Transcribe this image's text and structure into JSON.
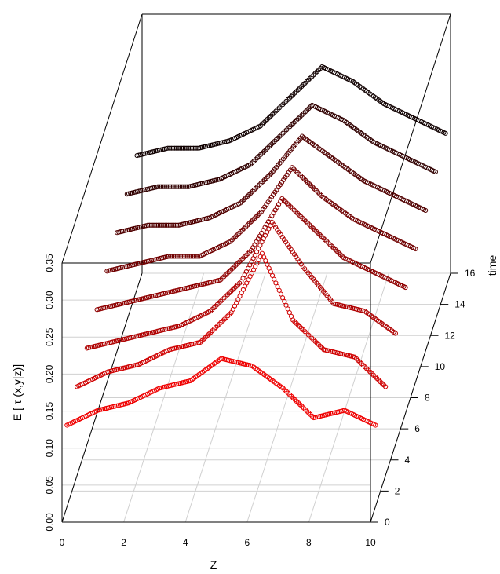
{
  "chart_data": {
    "type": "scatter",
    "projection": "3d-scatterplot-box",
    "xlabel": "Z",
    "ylabel": "E [ τ (x,y|z)]",
    "zlabel": "time",
    "x_ticks": [
      "0",
      "2",
      "4",
      "6",
      "8",
      "10"
    ],
    "y_ticks": [
      "0.00",
      "0.05",
      "0.10",
      "0.15",
      "0.20",
      "0.25",
      "0.30",
      "0.35"
    ],
    "z_ticks": [
      "0",
      "2",
      "4",
      "6",
      "8",
      "10",
      "12",
      "14",
      "16"
    ],
    "xlim": [
      0,
      10
    ],
    "ylim": [
      0,
      0.35
    ],
    "zlim": [
      0,
      16
    ],
    "grid": true,
    "marker": "open-circle",
    "color_gradient": {
      "low_time": "#ff0000",
      "high_time": "#000000"
    },
    "series": [
      {
        "time": 1,
        "x": [
          0,
          1,
          2,
          3,
          4,
          5,
          6,
          7,
          8,
          9,
          10
        ],
        "y": [
          0.11,
          0.13,
          0.14,
          0.16,
          0.17,
          0.2,
          0.19,
          0.16,
          0.12,
          0.13,
          0.11
        ]
      },
      {
        "time": 3,
        "x": [
          0,
          1,
          2,
          3,
          4,
          5,
          6,
          7,
          8,
          9,
          10
        ],
        "y": [
          0.12,
          0.14,
          0.15,
          0.17,
          0.18,
          0.22,
          0.3,
          0.21,
          0.17,
          0.16,
          0.12
        ]
      },
      {
        "time": 5,
        "x": [
          0,
          1,
          2,
          3,
          4,
          5,
          6,
          7,
          8,
          9,
          10
        ],
        "y": [
          0.13,
          0.14,
          0.15,
          0.16,
          0.18,
          0.22,
          0.3,
          0.24,
          0.19,
          0.18,
          0.15
        ]
      },
      {
        "time": 7,
        "x": [
          0,
          1,
          2,
          3,
          4,
          5,
          6,
          7,
          8,
          9,
          10
        ],
        "y": [
          0.14,
          0.15,
          0.16,
          0.17,
          0.18,
          0.22,
          0.29,
          0.25,
          0.21,
          0.19,
          0.17
        ]
      },
      {
        "time": 9,
        "x": [
          0,
          1,
          2,
          3,
          4,
          5,
          6,
          7,
          8,
          9,
          10
        ],
        "y": [
          0.15,
          0.16,
          0.17,
          0.17,
          0.19,
          0.23,
          0.29,
          0.25,
          0.22,
          0.2,
          0.18
        ]
      },
      {
        "time": 11,
        "x": [
          0,
          1,
          2,
          3,
          4,
          5,
          6,
          7,
          8,
          9,
          10
        ],
        "y": [
          0.16,
          0.17,
          0.17,
          0.18,
          0.2,
          0.24,
          0.29,
          0.26,
          0.23,
          0.21,
          0.19
        ]
      },
      {
        "time": 13,
        "x": [
          0,
          1,
          2,
          3,
          4,
          5,
          6,
          7,
          8,
          9,
          10
        ],
        "y": [
          0.17,
          0.18,
          0.18,
          0.19,
          0.21,
          0.25,
          0.29,
          0.27,
          0.24,
          0.22,
          0.2
        ]
      },
      {
        "time": 15,
        "x": [
          0,
          1,
          2,
          3,
          4,
          5,
          6,
          7,
          8,
          9,
          10
        ],
        "y": [
          0.18,
          0.19,
          0.19,
          0.2,
          0.22,
          0.26,
          0.3,
          0.28,
          0.25,
          0.23,
          0.21
        ]
      }
    ]
  }
}
